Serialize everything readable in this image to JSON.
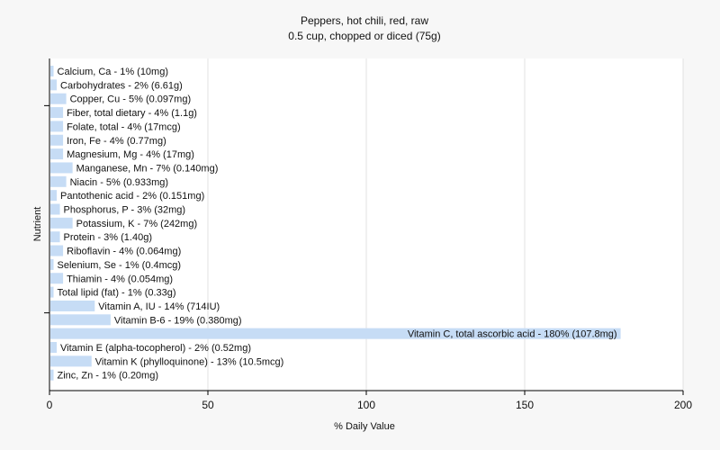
{
  "chart_data": {
    "type": "bar",
    "orientation": "horizontal",
    "title": "Peppers, hot chili, red, raw",
    "subtitle": "0.5 cup, chopped or diced (75g)",
    "xlabel": "% Daily Value",
    "ylabel": "Nutrient",
    "xlim": [
      0,
      200
    ],
    "xticks": [
      0,
      50,
      100,
      150,
      200
    ],
    "grid": true,
    "bar_color": "#c6dcf5",
    "categories": [
      "Calcium, Ca - 1% (10mg)",
      "Carbohydrates - 2% (6.61g)",
      "Copper, Cu - 5% (0.097mg)",
      "Fiber, total dietary - 4% (1.1g)",
      "Folate, total - 4% (17mcg)",
      "Iron, Fe - 4% (0.77mg)",
      "Magnesium, Mg - 4% (17mg)",
      "Manganese, Mn - 7% (0.140mg)",
      "Niacin - 5% (0.933mg)",
      "Pantothenic acid - 2% (0.151mg)",
      "Phosphorus, P - 3% (32mg)",
      "Potassium, K - 7% (242mg)",
      "Protein - 3% (1.40g)",
      "Riboflavin - 4% (0.064mg)",
      "Selenium, Se - 1% (0.4mcg)",
      "Thiamin - 4% (0.054mg)",
      "Total lipid (fat) - 1% (0.33g)",
      "Vitamin A, IU - 14% (714IU)",
      "Vitamin B-6 - 19% (0.380mg)",
      "Vitamin C, total ascorbic acid - 180% (107.8mg)",
      "Vitamin E (alpha-tocopherol) - 2% (0.52mg)",
      "Vitamin K (phylloquinone) - 13% (10.5mcg)",
      "Zinc, Zn - 1% (0.20mg)"
    ],
    "values": [
      1,
      2,
      5,
      4,
      4,
      4,
      4,
      7,
      5,
      2,
      3,
      7,
      3,
      4,
      1,
      4,
      1,
      14,
      19,
      180,
      2,
      13,
      1
    ]
  }
}
